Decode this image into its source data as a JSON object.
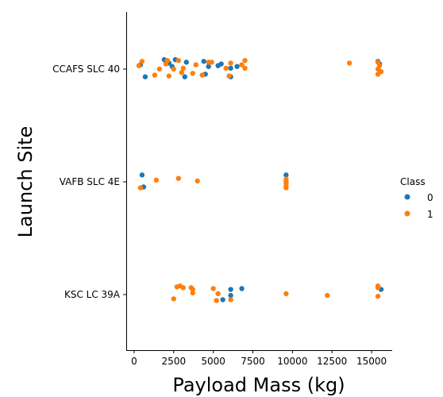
{
  "chart_data": {
    "type": "scatter",
    "title": "",
    "xlabel": "Payload Mass (kg)",
    "ylabel": "Launch Site",
    "xlim": [
      -500,
      16300
    ],
    "xticks": [
      0,
      2500,
      5000,
      7500,
      10000,
      12500,
      15000
    ],
    "categories": [
      "CCAFS SLC 40",
      "VAFB SLC 4E",
      "KSC LC 39A"
    ],
    "grid": false,
    "legend": {
      "title": "Class",
      "placement": "center-right",
      "entries": [
        {
          "label": "0",
          "color": "#1f77b4"
        },
        {
          "label": "1",
          "color": "#ff7f0e"
        }
      ]
    },
    "series": [
      {
        "name": "0",
        "color": "#1f77b4",
        "points": [
          {
            "x": 400,
            "y": "CCAFS SLC 40",
            "j": 0.05
          },
          {
            "x": 700,
            "y": "CCAFS SLC 40",
            "j": -0.09
          },
          {
            "x": 1900,
            "y": "CCAFS SLC 40",
            "j": 0.11
          },
          {
            "x": 2200,
            "y": "CCAFS SLC 40",
            "j": 0.07
          },
          {
            "x": 2400,
            "y": "CCAFS SLC 40",
            "j": 0.03
          },
          {
            "x": 2600,
            "y": "CCAFS SLC 40",
            "j": 0.11
          },
          {
            "x": 3200,
            "y": "CCAFS SLC 40",
            "j": -0.09
          },
          {
            "x": 3300,
            "y": "CCAFS SLC 40",
            "j": 0.08
          },
          {
            "x": 4400,
            "y": "CCAFS SLC 40",
            "j": 0.09
          },
          {
            "x": 4500,
            "y": "CCAFS SLC 40",
            "j": -0.06
          },
          {
            "x": 4700,
            "y": "CCAFS SLC 40",
            "j": 0.03
          },
          {
            "x": 5300,
            "y": "CCAFS SLC 40",
            "j": 0.04
          },
          {
            "x": 5500,
            "y": "CCAFS SLC 40",
            "j": 0.06
          },
          {
            "x": 6100,
            "y": "CCAFS SLC 40",
            "j": 0.01
          },
          {
            "x": 6100,
            "y": "CCAFS SLC 40",
            "j": -0.09
          },
          {
            "x": 6500,
            "y": "CCAFS SLC 40",
            "j": 0.03
          },
          {
            "x": 15400,
            "y": "CCAFS SLC 40",
            "j": 0.09
          },
          {
            "x": 15500,
            "y": "CCAFS SLC 40",
            "j": 0.06
          },
          {
            "x": 500,
            "y": "VAFB SLC 4E",
            "j": 0.08
          },
          {
            "x": 600,
            "y": "VAFB SLC 4E",
            "j": -0.06
          },
          {
            "x": 9600,
            "y": "VAFB SLC 4E",
            "j": 0.08
          },
          {
            "x": 6100,
            "y": "KSC LC 39A",
            "j": 0.06
          },
          {
            "x": 6800,
            "y": "KSC LC 39A",
            "j": 0.07
          },
          {
            "x": 5600,
            "y": "KSC LC 39A",
            "j": -0.06
          },
          {
            "x": 6100,
            "y": "KSC LC 39A",
            "j": -0.01
          },
          {
            "x": 15600,
            "y": "KSC LC 39A",
            "j": 0.06
          }
        ]
      },
      {
        "name": "1",
        "color": "#ff7f0e",
        "points": [
          {
            "x": 300,
            "y": "CCAFS SLC 40",
            "j": 0.04
          },
          {
            "x": 500,
            "y": "CCAFS SLC 40",
            "j": 0.09
          },
          {
            "x": 1300,
            "y": "CCAFS SLC 40",
            "j": -0.07
          },
          {
            "x": 1600,
            "y": "CCAFS SLC 40",
            "j": 0.0
          },
          {
            "x": 2000,
            "y": "CCAFS SLC 40",
            "j": 0.06
          },
          {
            "x": 2100,
            "y": "CCAFS SLC 40",
            "j": 0.1
          },
          {
            "x": 2200,
            "y": "CCAFS SLC 40",
            "j": -0.08
          },
          {
            "x": 2500,
            "y": "CCAFS SLC 40",
            "j": 0.0
          },
          {
            "x": 2800,
            "y": "CCAFS SLC 40",
            "j": 0.1
          },
          {
            "x": 3000,
            "y": "CCAFS SLC 40",
            "j": -0.04
          },
          {
            "x": 3100,
            "y": "CCAFS SLC 40",
            "j": 0.01
          },
          {
            "x": 3700,
            "y": "CCAFS SLC 40",
            "j": -0.05
          },
          {
            "x": 3900,
            "y": "CCAFS SLC 40",
            "j": 0.05
          },
          {
            "x": 4300,
            "y": "CCAFS SLC 40",
            "j": -0.07
          },
          {
            "x": 4700,
            "y": "CCAFS SLC 40",
            "j": 0.08
          },
          {
            "x": 4900,
            "y": "CCAFS SLC 40",
            "j": 0.08
          },
          {
            "x": 5800,
            "y": "CCAFS SLC 40",
            "j": 0.01
          },
          {
            "x": 6000,
            "y": "CCAFS SLC 40",
            "j": -0.08
          },
          {
            "x": 6100,
            "y": "CCAFS SLC 40",
            "j": 0.07
          },
          {
            "x": 6800,
            "y": "CCAFS SLC 40",
            "j": 0.05
          },
          {
            "x": 7000,
            "y": "CCAFS SLC 40",
            "j": 0.1
          },
          {
            "x": 7000,
            "y": "CCAFS SLC 40",
            "j": 0.01
          },
          {
            "x": 13600,
            "y": "CCAFS SLC 40",
            "j": 0.07
          },
          {
            "x": 15400,
            "y": "CCAFS SLC 40",
            "j": 0.08
          },
          {
            "x": 15400,
            "y": "CCAFS SLC 40",
            "j": 0.0
          },
          {
            "x": 15400,
            "y": "CCAFS SLC 40",
            "j": -0.06
          },
          {
            "x": 15500,
            "y": "CCAFS SLC 40",
            "j": 0.04
          },
          {
            "x": 15600,
            "y": "CCAFS SLC 40",
            "j": -0.03
          },
          {
            "x": 400,
            "y": "VAFB SLC 4E",
            "j": -0.07
          },
          {
            "x": 1400,
            "y": "VAFB SLC 4E",
            "j": 0.02
          },
          {
            "x": 2800,
            "y": "VAFB SLC 4E",
            "j": 0.04
          },
          {
            "x": 4000,
            "y": "VAFB SLC 4E",
            "j": 0.01
          },
          {
            "x": 9600,
            "y": "VAFB SLC 4E",
            "j": 0.03
          },
          {
            "x": 9600,
            "y": "VAFB SLC 4E",
            "j": 0.0
          },
          {
            "x": 9600,
            "y": "VAFB SLC 4E",
            "j": -0.02
          },
          {
            "x": 9600,
            "y": "VAFB SLC 4E",
            "j": -0.05
          },
          {
            "x": 9600,
            "y": "VAFB SLC 4E",
            "j": -0.07
          },
          {
            "x": 2700,
            "y": "KSC LC 39A",
            "j": 0.09
          },
          {
            "x": 2900,
            "y": "KSC LC 39A",
            "j": 0.1
          },
          {
            "x": 3100,
            "y": "KSC LC 39A",
            "j": 0.08
          },
          {
            "x": 3600,
            "y": "KSC LC 39A",
            "j": 0.08
          },
          {
            "x": 3700,
            "y": "KSC LC 39A",
            "j": 0.06
          },
          {
            "x": 3700,
            "y": "KSC LC 39A",
            "j": 0.02
          },
          {
            "x": 2500,
            "y": "KSC LC 39A",
            "j": -0.05
          },
          {
            "x": 5000,
            "y": "KSC LC 39A",
            "j": 0.07
          },
          {
            "x": 5300,
            "y": "KSC LC 39A",
            "j": 0.01
          },
          {
            "x": 5200,
            "y": "KSC LC 39A",
            "j": -0.07
          },
          {
            "x": 6100,
            "y": "KSC LC 39A",
            "j": -0.06
          },
          {
            "x": 9600,
            "y": "KSC LC 39A",
            "j": 0.01
          },
          {
            "x": 12200,
            "y": "KSC LC 39A",
            "j": -0.01
          },
          {
            "x": 15400,
            "y": "KSC LC 39A",
            "j": 0.1
          },
          {
            "x": 15400,
            "y": "KSC LC 39A",
            "j": 0.08
          },
          {
            "x": 15400,
            "y": "KSC LC 39A",
            "j": -0.02
          }
        ]
      }
    ]
  }
}
